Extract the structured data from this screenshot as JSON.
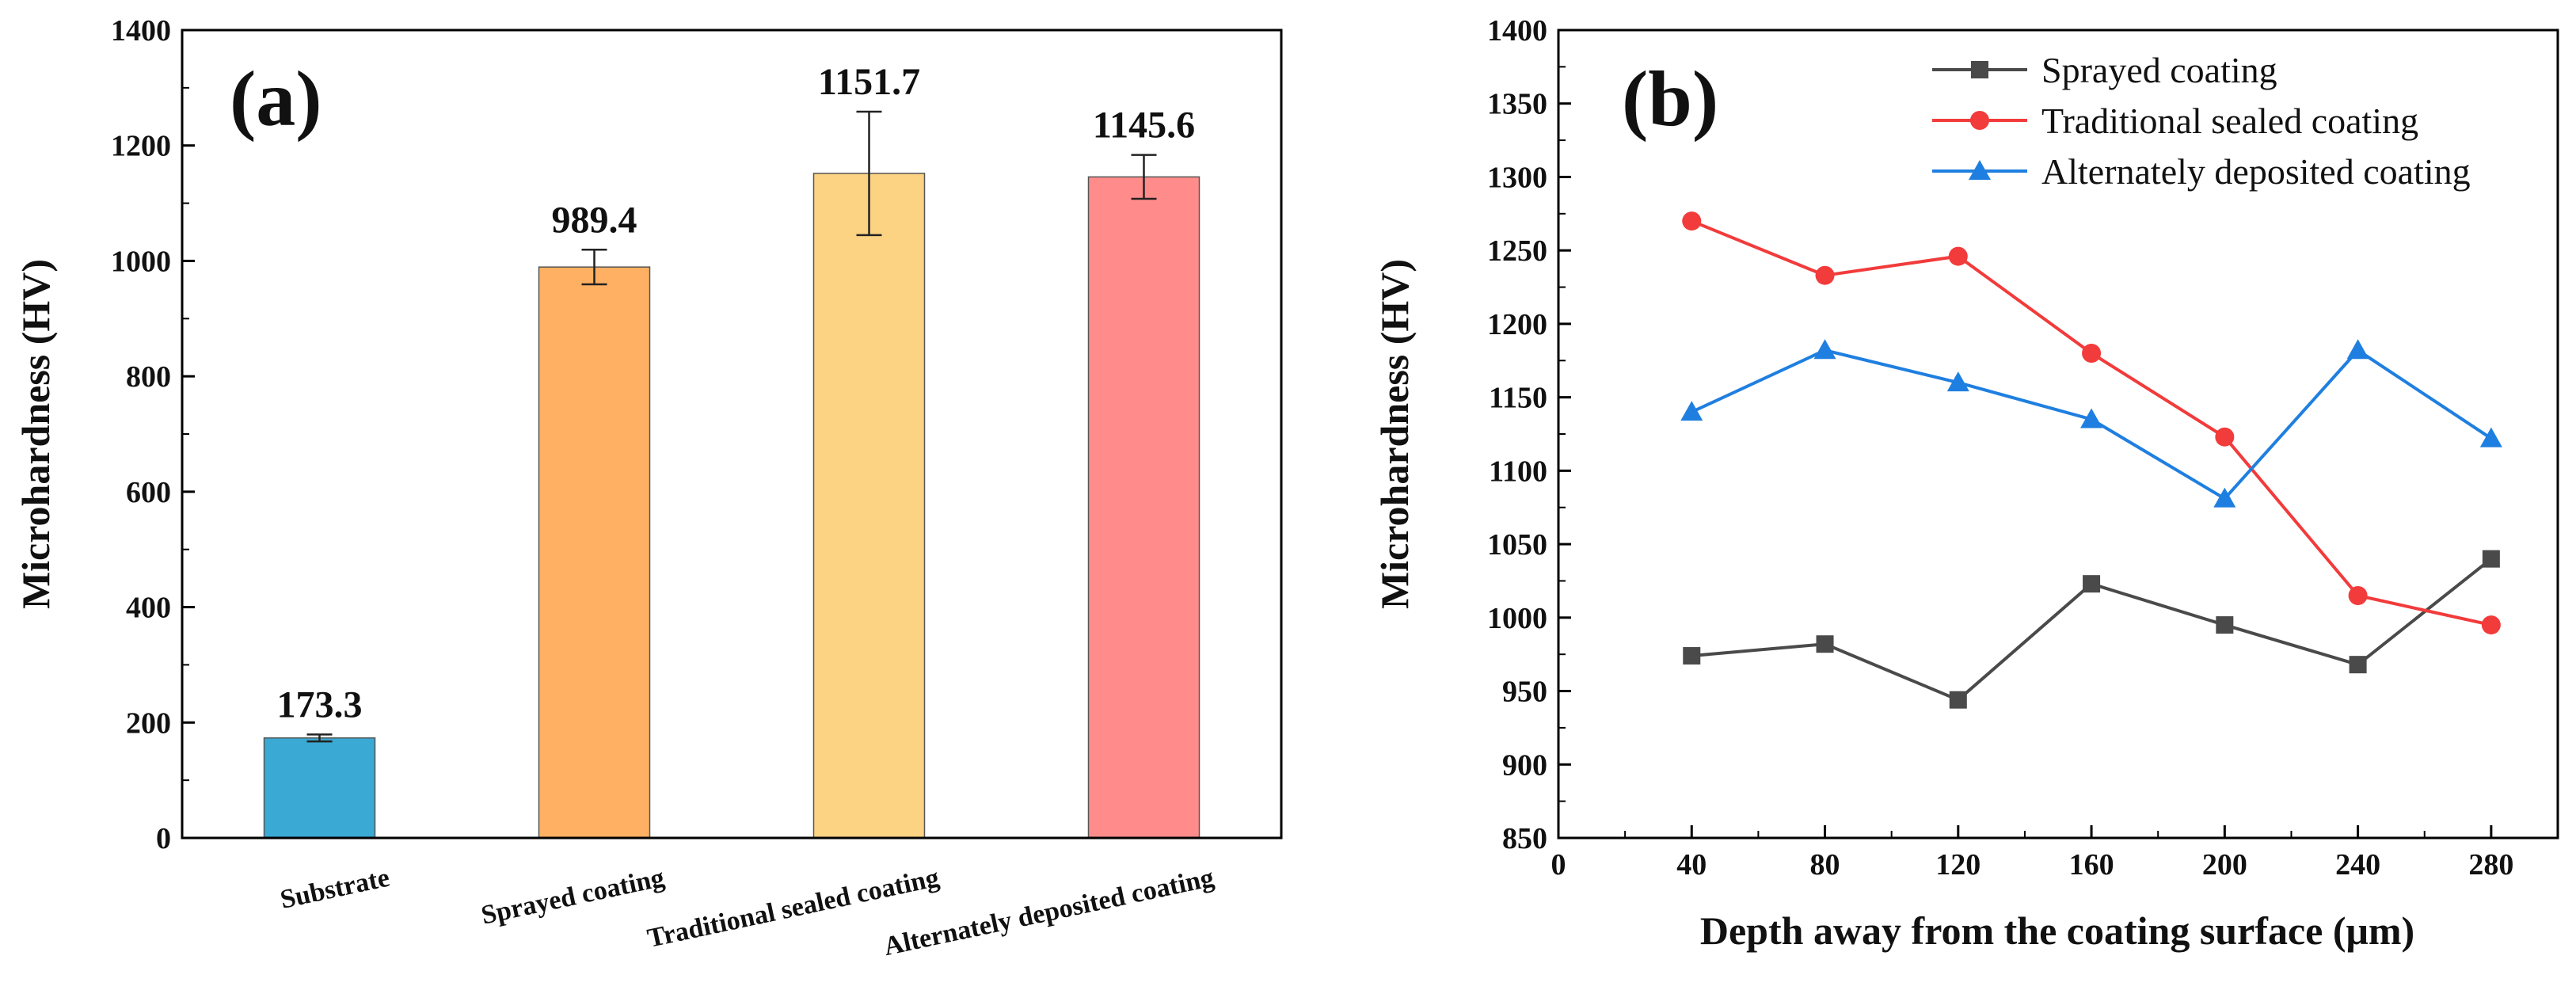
{
  "chart_data": [
    {
      "type": "bar",
      "panel_label": "(a)",
      "categories": [
        "Substrate",
        "Sprayed coating",
        "Traditional sealed coating",
        "Alternately deposited coating"
      ],
      "values": [
        173.3,
        989.4,
        1151.7,
        1145.6
      ],
      "value_labels": [
        "173.3",
        "989.4",
        "1151.7",
        "1145.6"
      ],
      "errors": [
        6,
        30,
        107,
        38
      ],
      "colors": [
        "#3AA9D4",
        "#FFB062",
        "#FCD283",
        "#FF8C8A"
      ],
      "ylabel": "Microhardness (HV)",
      "xlabel": "",
      "ylim": [
        0,
        1400
      ],
      "yticks": [
        0,
        200,
        400,
        600,
        800,
        1000,
        1200,
        1400
      ],
      "grid": false
    },
    {
      "type": "line",
      "panel_label": "(b)",
      "x": [
        40,
        80,
        120,
        160,
        200,
        240,
        280
      ],
      "series": [
        {
          "name": "Sprayed coating",
          "color": "#4A4A4A",
          "marker": "square",
          "values": [
            974,
            982,
            944,
            1023,
            995,
            968,
            1040
          ]
        },
        {
          "name": "Traditional sealed coating",
          "color": "#F23B3B",
          "marker": "circle",
          "values": [
            1270,
            1233,
            1246,
            1180,
            1123,
            1015,
            995
          ]
        },
        {
          "name": "Alternately deposited coating",
          "color": "#1F7FE0",
          "marker": "triangle",
          "values": [
            1140,
            1182,
            1160,
            1135,
            1081,
            1182,
            1122
          ]
        }
      ],
      "xlabel": "Depth away from the coating surface (μm)",
      "ylabel": "Microhardness (HV)",
      "xlim": [
        0,
        300
      ],
      "xticks": [
        0,
        40,
        80,
        120,
        160,
        200,
        240,
        280
      ],
      "ylim": [
        850,
        1400
      ],
      "yticks": [
        850,
        900,
        950,
        1000,
        1050,
        1100,
        1150,
        1200,
        1250,
        1300,
        1350,
        1400
      ],
      "legend_position": "top-right",
      "grid": false
    }
  ]
}
